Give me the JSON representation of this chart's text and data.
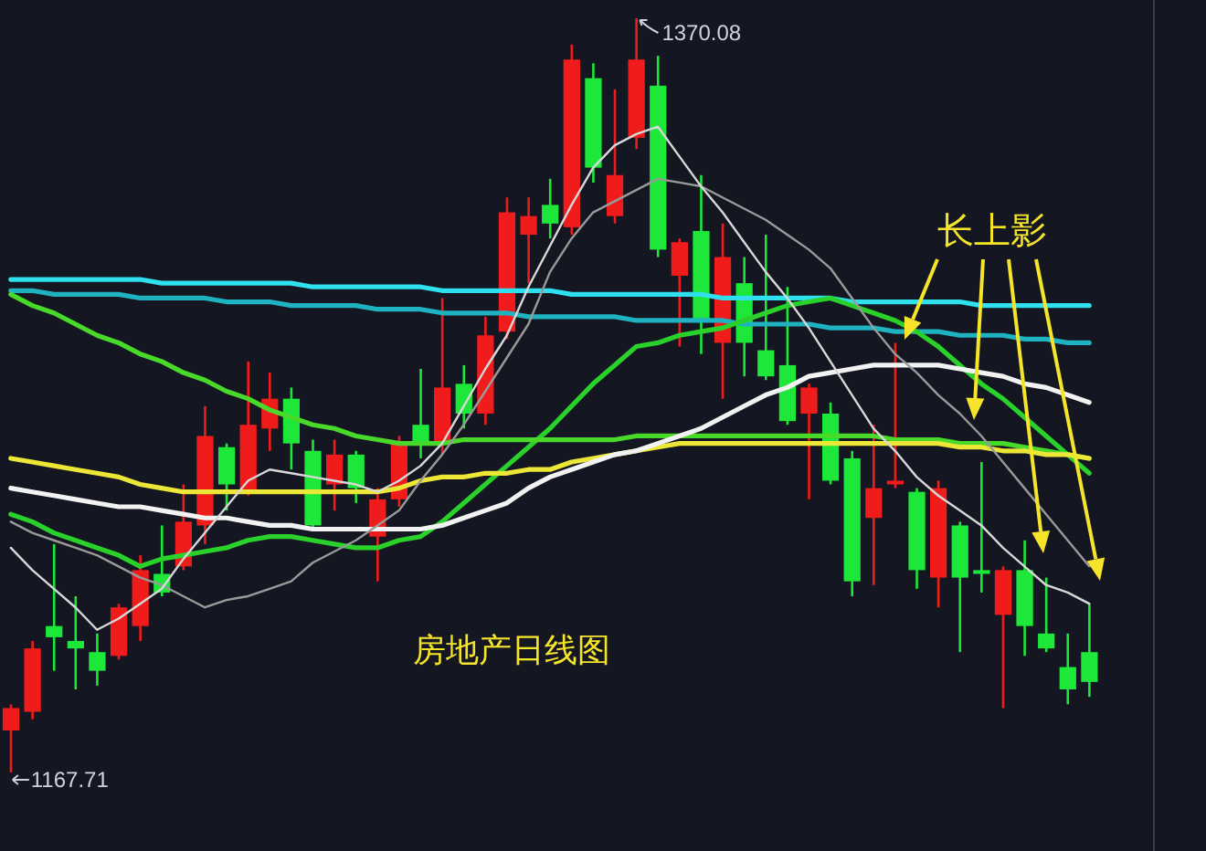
{
  "chart_data": {
    "type": "candlestick",
    "categories": [
      null,
      null,
      null,
      null,
      null,
      null,
      null,
      null,
      null,
      null,
      null,
      null,
      null,
      null,
      null,
      null,
      null,
      null,
      null,
      null,
      null,
      null,
      null,
      null,
      null,
      null,
      null,
      null,
      null,
      null,
      null,
      null,
      null,
      null,
      null,
      null,
      null,
      null,
      null,
      null,
      null,
      null,
      null,
      null,
      null,
      null,
      null,
      null,
      null,
      null,
      null
    ],
    "ohlc": [
      [
        1179,
        1186,
        1167.71,
        1185
      ],
      [
        1184,
        1203,
        1182,
        1201
      ],
      [
        1207,
        1229,
        1195,
        1204
      ],
      [
        1203,
        1215,
        1190,
        1201
      ],
      [
        1200,
        1205,
        1191,
        1195
      ],
      [
        1199,
        1213,
        1198,
        1212
      ],
      [
        1207,
        1226,
        1203,
        1222
      ],
      [
        1221,
        1234,
        1215,
        1216
      ],
      [
        1223,
        1245,
        1222,
        1235
      ],
      [
        1234,
        1266,
        1229,
        1258
      ],
      [
        1255,
        1256,
        1238,
        1245
      ],
      [
        1243,
        1278,
        1242,
        1261
      ],
      [
        1260,
        1275,
        1254,
        1268
      ],
      [
        1268,
        1271,
        1249,
        1256
      ],
      [
        1254,
        1257,
        1233,
        1234
      ],
      [
        1245,
        1257,
        1238,
        1253
      ],
      [
        1253,
        1254,
        1240,
        1244
      ],
      [
        1231,
        1244,
        1219,
        1241
      ],
      [
        1241,
        1258,
        1239,
        1256
      ],
      [
        1261,
        1276,
        1252,
        1256
      ],
      [
        1256,
        1295,
        1253,
        1271
      ],
      [
        1272,
        1277,
        1260,
        1264
      ],
      [
        1264,
        1290,
        1261,
        1285
      ],
      [
        1286,
        1322,
        1284,
        1318
      ],
      [
        1312,
        1322,
        1299,
        1317
      ],
      [
        1320,
        1327,
        1311,
        1315
      ],
      [
        1314,
        1363,
        1312,
        1359
      ],
      [
        1354,
        1358,
        1326,
        1330
      ],
      [
        1317,
        1351,
        1315,
        1328
      ],
      [
        1338,
        1370.08,
        1335,
        1359
      ],
      [
        1352,
        1360,
        1306,
        1308
      ],
      [
        1301,
        1311,
        1282,
        1310
      ],
      [
        1313,
        1328,
        1280,
        1289
      ],
      [
        1283,
        1315,
        1268,
        1306
      ],
      [
        1299,
        1306,
        1274,
        1283
      ],
      [
        1281,
        1312,
        1273,
        1274
      ],
      [
        1277,
        1298,
        1261,
        1262
      ],
      [
        1264,
        1272,
        1241,
        1271
      ],
      [
        1264,
        1267,
        1245,
        1246
      ],
      [
        1252,
        1254,
        1215,
        1219
      ],
      [
        1236,
        1261,
        1218,
        1244
      ],
      [
        1245,
        1283,
        1244,
        1246
      ],
      [
        1243,
        1244,
        1217,
        1222
      ],
      [
        1220,
        1246,
        1212,
        1244
      ],
      [
        1234,
        1235,
        1200,
        1220
      ],
      [
        1222,
        1251,
        1216,
        1221
      ],
      [
        1210,
        1223,
        1185,
        1222
      ],
      [
        1222,
        1230,
        1199,
        1207
      ],
      [
        1205,
        1220,
        1200,
        1201
      ],
      [
        1196,
        1205,
        1186,
        1190
      ],
      [
        1200,
        1213,
        1188,
        1192
      ]
    ],
    "colors": [
      "#f01c1c",
      "#f01c1c",
      "#1de83a",
      "#1de83a",
      "#1de83a",
      "#f01c1c",
      "#f01c1c",
      "#1de83a",
      "#f01c1c",
      "#f01c1c",
      "#1de83a",
      "#f01c1c",
      "#f01c1c",
      "#1de83a",
      "#1de83a",
      "#f01c1c",
      "#1de83a",
      "#f01c1c",
      "#f01c1c",
      "#1de83a",
      "#f01c1c",
      "#1de83a",
      "#f01c1c",
      "#f01c1c",
      "#f01c1c",
      "#1de83a",
      "#f01c1c",
      "#1de83a",
      "#f01c1c",
      "#f01c1c",
      "#1de83a",
      "#f01c1c",
      "#1de83a",
      "#f01c1c",
      "#1de83a",
      "#1de83a",
      "#1de83a",
      "#f01c1c",
      "#1de83a",
      "#1de83a",
      "#f01c1c",
      "#f01c1c",
      "#1de83a",
      "#f01c1c",
      "#1de83a",
      "#1de83a",
      "#f01c1c",
      "#1de83a",
      "#1de83a",
      "#1de83a",
      "#1de83a"
    ],
    "series": [
      {
        "type": "line",
        "color": "#2fe0ee",
        "values": [
          1300,
          1300,
          1300,
          1300,
          1300,
          1300,
          1300,
          1299,
          1299,
          1299,
          1299,
          1299,
          1299,
          1299,
          1298,
          1298,
          1298,
          1298,
          1298,
          1298,
          1297,
          1297,
          1297,
          1297,
          1297,
          1297,
          1296,
          1296,
          1296,
          1296,
          1296,
          1296,
          1296,
          1295,
          1295,
          1295,
          1295,
          1295,
          1295,
          1294,
          1294,
          1294,
          1294,
          1294,
          1294,
          1293,
          1293,
          1293,
          1293,
          1293,
          1293
        ]
      },
      {
        "type": "line",
        "color": "#1fb3c2",
        "values": [
          1297,
          1297,
          1296,
          1296,
          1296,
          1296,
          1295,
          1295,
          1295,
          1295,
          1294,
          1294,
          1294,
          1293,
          1293,
          1293,
          1293,
          1292,
          1292,
          1292,
          1291,
          1291,
          1291,
          1291,
          1290,
          1290,
          1290,
          1290,
          1290,
          1289,
          1289,
          1289,
          1289,
          1289,
          1288,
          1288,
          1288,
          1288,
          1287,
          1287,
          1287,
          1286,
          1286,
          1286,
          1285,
          1285,
          1285,
          1284,
          1284,
          1283,
          1283
        ]
      },
      {
        "type": "line",
        "color": "#2ad12a",
        "values": [
          1237,
          1235,
          1232,
          1230,
          1228,
          1226,
          1223,
          1225,
          1226,
          1227,
          1228,
          1230,
          1231,
          1231,
          1230,
          1229,
          1228,
          1228,
          1230,
          1231,
          1235,
          1240,
          1245,
          1250,
          1255,
          1260,
          1266,
          1272,
          1277,
          1282,
          1283,
          1285,
          1286,
          1287,
          1289,
          1291,
          1293,
          1294,
          1295,
          1293,
          1291,
          1289,
          1286,
          1282,
          1277,
          1272,
          1268,
          1263,
          1258,
          1253,
          1248
        ]
      },
      {
        "type": "line",
        "color": "#49d92a",
        "values": [
          1296,
          1293,
          1291,
          1288,
          1285,
          1283,
          1280,
          1278,
          1275,
          1273,
          1270,
          1268,
          1265,
          1263,
          1261,
          1260,
          1258,
          1257,
          1256,
          1256,
          1256,
          1257,
          1257,
          1257,
          1257,
          1257,
          1257,
          1257,
          1257,
          1258,
          1258,
          1258,
          1258,
          1258,
          1258,
          1258,
          1258,
          1258,
          1258,
          1258,
          1258,
          1257,
          1257,
          1257,
          1256,
          1256,
          1256,
          1255,
          1254,
          1253,
          1252
        ]
      },
      {
        "type": "line",
        "color": "#ece636",
        "values": [
          1252,
          1251,
          1250,
          1249,
          1248,
          1247,
          1245,
          1244,
          1243,
          1243,
          1243,
          1243,
          1243,
          1243,
          1243,
          1243,
          1243,
          1243,
          1244,
          1246,
          1247,
          1247,
          1248,
          1248,
          1249,
          1249,
          1251,
          1252,
          1253,
          1254,
          1255,
          1256,
          1256,
          1256,
          1256,
          1256,
          1256,
          1256,
          1256,
          1256,
          1256,
          1256,
          1256,
          1256,
          1255,
          1255,
          1254,
          1254,
          1253,
          1253,
          1252
        ]
      },
      {
        "type": "line",
        "color": "#f2f2f2",
        "values": [
          1244,
          1243,
          1242,
          1241,
          1240,
          1239,
          1239,
          1238,
          1237,
          1236,
          1236,
          1235,
          1234,
          1234,
          1233,
          1233,
          1233,
          1233,
          1233,
          1233,
          1234,
          1236,
          1238,
          1240,
          1244,
          1247,
          1249,
          1251,
          1253,
          1254,
          1256,
          1258,
          1260,
          1263,
          1266,
          1269,
          1271,
          1274,
          1275,
          1276,
          1277,
          1277,
          1277,
          1277,
          1276,
          1275,
          1274,
          1272,
          1271,
          1269,
          1267
        ]
      },
      {
        "type": "line",
        "color": "#9a9a9a",
        "values": [
          1235,
          1232,
          1230,
          1228,
          1226,
          1223,
          1220,
          1218,
          1215,
          1212,
          1214,
          1215,
          1217,
          1219,
          1224,
          1227,
          1230,
          1234,
          1238,
          1246,
          1253,
          1261,
          1270,
          1279,
          1288,
          1302,
          1311,
          1318,
          1321,
          1324,
          1327,
          1326,
          1325,
          1322,
          1319,
          1316,
          1312,
          1308,
          1303,
          1295,
          1287,
          1280,
          1275,
          1269,
          1264,
          1258,
          1251,
          1244,
          1237,
          1230,
          1223
        ]
      },
      {
        "type": "line",
        "color": "#d8d8d8",
        "values": [
          1228,
          1222,
          1217,
          1212,
          1206,
          1209,
          1213,
          1217,
          1225,
          1232,
          1239,
          1246,
          1249,
          1248,
          1247,
          1246,
          1245,
          1243,
          1246,
          1250,
          1256,
          1266,
          1276,
          1285,
          1298,
          1309,
          1320,
          1330,
          1336,
          1339,
          1341,
          1333,
          1325,
          1318,
          1310,
          1302,
          1295,
          1287,
          1278,
          1269,
          1260,
          1254,
          1247,
          1242,
          1238,
          1234,
          1228,
          1223,
          1218,
          1216,
          1213
        ]
      }
    ],
    "annotations": [
      "房地产日线图",
      "长上影",
      "1370.08",
      "1167.71"
    ]
  }
}
